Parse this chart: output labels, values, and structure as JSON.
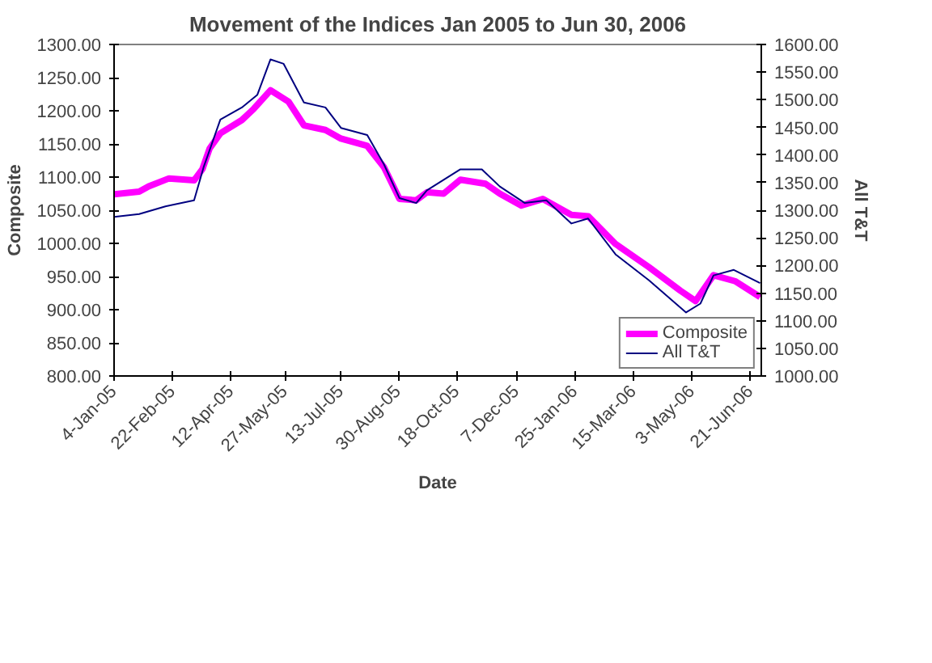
{
  "chart_data": {
    "type": "line",
    "title": "Movement of the Indices Jan 2005 to Jun 30, 2006",
    "xlabel": "Date",
    "ylabel": "Composite",
    "y2label": "All T&T",
    "xlim": [
      "2005-01-04",
      "2006-06-30"
    ],
    "xticks": [
      {
        "value": "2005-01-04",
        "label": "4-Jan-05"
      },
      {
        "value": "2005-02-22",
        "label": "22-Feb-05"
      },
      {
        "value": "2005-04-12",
        "label": "12-Apr-05"
      },
      {
        "value": "2005-05-27",
        "label": "27-May-05"
      },
      {
        "value": "2005-07-13",
        "label": "13-Jul-05"
      },
      {
        "value": "2005-08-30",
        "label": "30-Aug-05"
      },
      {
        "value": "2005-10-18",
        "label": "18-Oct-05"
      },
      {
        "value": "2005-12-07",
        "label": "7-Dec-05"
      },
      {
        "value": "2006-01-25",
        "label": "25-Jan-06"
      },
      {
        "value": "2006-03-15",
        "label": "15-Mar-06"
      },
      {
        "value": "2006-05-03",
        "label": "3-May-06"
      },
      {
        "value": "2006-06-21",
        "label": "21-Jun-06"
      }
    ],
    "ylim": [
      800,
      1300
    ],
    "yticks": [
      {
        "value": 800,
        "label": "800.00"
      },
      {
        "value": 850,
        "label": "850.00"
      },
      {
        "value": 900,
        "label": "900.00"
      },
      {
        "value": 950,
        "label": "950.00"
      },
      {
        "value": 1000,
        "label": "1000.00"
      },
      {
        "value": 1050,
        "label": "1050.00"
      },
      {
        "value": 1100,
        "label": "1100.00"
      },
      {
        "value": 1150,
        "label": "1150.00"
      },
      {
        "value": 1200,
        "label": "1200.00"
      },
      {
        "value": 1250,
        "label": "1250.00"
      },
      {
        "value": 1300,
        "label": "1300.00"
      }
    ],
    "y2lim": [
      1000,
      1600
    ],
    "y2ticks": [
      {
        "value": 1000,
        "label": "1000.00"
      },
      {
        "value": 1050,
        "label": "1050.00"
      },
      {
        "value": 1100,
        "label": "1100.00"
      },
      {
        "value": 1150,
        "label": "1150.00"
      },
      {
        "value": 1200,
        "label": "1200.00"
      },
      {
        "value": 1250,
        "label": "1250.00"
      },
      {
        "value": 1300,
        "label": "1300.00"
      },
      {
        "value": 1350,
        "label": "1350.00"
      },
      {
        "value": 1400,
        "label": "1400.00"
      },
      {
        "value": 1450,
        "label": "1450.00"
      },
      {
        "value": 1500,
        "label": "1500.00"
      },
      {
        "value": 1550,
        "label": "1550.00"
      },
      {
        "value": 1600,
        "label": "1600.00"
      }
    ],
    "legend": "bottom right",
    "series": [
      {
        "name": "Composite",
        "color": "#ff00ff",
        "x": [
          "2005-01-04",
          "2005-01-25",
          "2005-02-02",
          "2005-02-19",
          "2005-03-12",
          "2005-03-19",
          "2005-03-25",
          "2005-04-03",
          "2005-04-21",
          "2005-05-01",
          "2005-05-15",
          "2005-05-30",
          "2005-06-12",
          "2005-06-30",
          "2005-07-13",
          "2005-08-04",
          "2005-08-18",
          "2005-08-31",
          "2005-09-14",
          "2005-09-23",
          "2005-10-07",
          "2005-10-21",
          "2005-11-11",
          "2005-11-23",
          "2005-12-11",
          "2005-12-29",
          "2006-01-22",
          "2006-02-05",
          "2006-02-28",
          "2006-03-28",
          "2006-04-23",
          "2006-05-06",
          "2006-05-21",
          "2006-06-08",
          "2006-06-29"
        ],
        "values": [
          1074,
          1078,
          1086,
          1098,
          1095,
          1112,
          1143,
          1166,
          1186,
          1203,
          1231,
          1214,
          1178,
          1171,
          1158,
          1147,
          1115,
          1067,
          1065,
          1077,
          1075,
          1096,
          1090,
          1075,
          1057,
          1067,
          1043,
          1041,
          999,
          964,
          929,
          913,
          952,
          943,
          919
        ]
      },
      {
        "name": "All T&T",
        "color": "#000080",
        "axis": "y2",
        "x": [
          "2005-01-04",
          "2005-01-25",
          "2005-02-16",
          "2005-03-12",
          "2005-03-20",
          "2005-04-03",
          "2005-04-21",
          "2005-05-04",
          "2005-05-15",
          "2005-05-26",
          "2005-06-12",
          "2005-06-30",
          "2005-07-13",
          "2005-08-04",
          "2005-08-18",
          "2005-08-31",
          "2005-09-14",
          "2005-09-23",
          "2005-10-21",
          "2005-11-08",
          "2005-11-23",
          "2005-12-14",
          "2006-01-01",
          "2006-01-22",
          "2006-02-05",
          "2006-02-28",
          "2006-03-28",
          "2006-04-28",
          "2006-05-10",
          "2006-05-21",
          "2006-06-07",
          "2006-06-29"
        ],
        "values": [
          1288,
          1293,
          1307,
          1318,
          1378,
          1464,
          1486,
          1509,
          1573,
          1565,
          1495,
          1486,
          1449,
          1436,
          1383,
          1322,
          1313,
          1336,
          1374,
          1374,
          1343,
          1313,
          1318,
          1276,
          1285,
          1220,
          1173,
          1115,
          1131,
          1182,
          1192,
          1168
        ]
      }
    ]
  }
}
